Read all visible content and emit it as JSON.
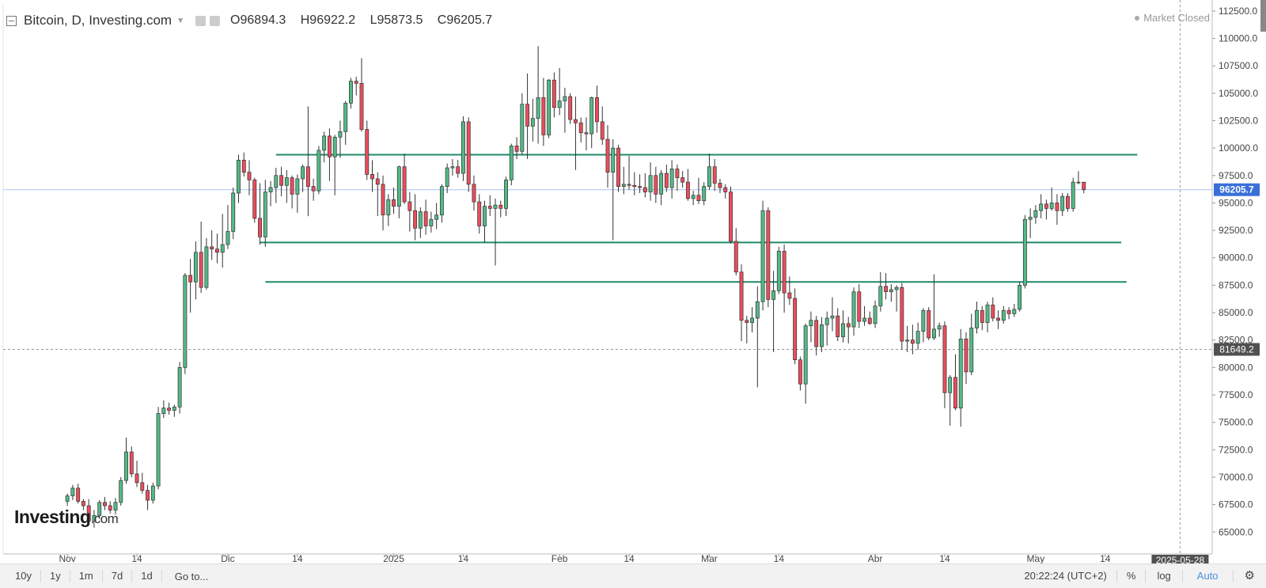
{
  "header": {
    "title": "Bitcoin, D, Investing.com",
    "ohlc": [
      {
        "key": "O",
        "value": "96894.3"
      },
      {
        "key": "H",
        "value": "96922.2"
      },
      {
        "key": "L",
        "value": "95873.5"
      },
      {
        "key": "C",
        "value": "96205.7"
      }
    ]
  },
  "market_status": "Market Closed",
  "logo": {
    "text": "Investing",
    "suffix": ".com"
  },
  "toolbar": {
    "timeframes": [
      "10y",
      "1y",
      "1m",
      "7d",
      "1d"
    ],
    "goto": "Go to...",
    "time": "20:22:24 (UTC+2)",
    "percent": "%",
    "log": "log",
    "auto": "Auto",
    "settings_icon": "gear-icon"
  },
  "colors": {
    "up": "#53b987",
    "down": "#eb4d5c",
    "support_line": "#1e8a6a",
    "last_price": "#3a6fd8",
    "crosshair": "#505050"
  },
  "chart_data": {
    "type": "candlestick",
    "title": "Bitcoin, D, Investing.com",
    "ylim": [
      63000,
      113500
    ],
    "y_ticks": [
      65000,
      67500,
      70000,
      72500,
      75000,
      77500,
      80000,
      82500,
      85000,
      87500,
      90000,
      92500,
      95000,
      97500,
      100000,
      102500,
      105000,
      107500,
      110000,
      112500
    ],
    "x_labels": [
      {
        "label": "Nov",
        "day": 0
      },
      {
        "label": "14",
        "day": 13
      },
      {
        "label": "Dic",
        "day": 30
      },
      {
        "label": "14",
        "day": 43
      },
      {
        "label": "2025",
        "day": 61
      },
      {
        "label": "14",
        "day": 74
      },
      {
        "label": "Feb",
        "day": 92
      },
      {
        "label": "14",
        "day": 105
      },
      {
        "label": "Mar",
        "day": 120
      },
      {
        "label": "14",
        "day": 133
      },
      {
        "label": "Abr",
        "day": 151
      },
      {
        "label": "14",
        "day": 164
      },
      {
        "label": "May",
        "day": 181
      },
      {
        "label": "14",
        "day": 194
      }
    ],
    "x_range_days": [
      -12,
      214
    ],
    "crosshair": {
      "day": 208,
      "date_label": "2025-05-28",
      "price": 81649.2,
      "price_label": "81649.2"
    },
    "last_price": {
      "value": 96205.7,
      "label": "96205.7"
    },
    "horizontal_lines": [
      {
        "value": 99400,
        "from_day": 39,
        "to_day": 200
      },
      {
        "value": 91400,
        "from_day": 36,
        "to_day": 197
      },
      {
        "value": 87800,
        "from_day": 37,
        "to_day": 198
      }
    ],
    "candles": [
      [
        67800,
        68500,
        67400,
        68300
      ],
      [
        68300,
        69300,
        67900,
        69000
      ],
      [
        69000,
        69400,
        67600,
        67800
      ],
      [
        67800,
        68000,
        67000,
        67400
      ],
      [
        67400,
        68000,
        65700,
        66000
      ],
      [
        66000,
        67000,
        65400,
        66500
      ],
      [
        66500,
        67900,
        66200,
        67700
      ],
      [
        67700,
        68200,
        67000,
        67400
      ],
      [
        67400,
        67800,
        66700,
        67000
      ],
      [
        67000,
        68100,
        66600,
        67700
      ],
      [
        67700,
        70000,
        67400,
        69700
      ],
      [
        69700,
        73600,
        69400,
        72300
      ],
      [
        72300,
        72800,
        70000,
        70300
      ],
      [
        70300,
        71500,
        69100,
        69500
      ],
      [
        69500,
        70400,
        68500,
        68800
      ],
      [
        68800,
        69300,
        67000,
        67900
      ],
      [
        67900,
        69500,
        67600,
        69200
      ],
      [
        69200,
        76400,
        68900,
        75800
      ],
      [
        75800,
        77000,
        75400,
        76300
      ],
      [
        76300,
        76800,
        75700,
        76100
      ],
      [
        76100,
        76600,
        75500,
        76400
      ],
      [
        76400,
        80500,
        75800,
        80000
      ],
      [
        80000,
        88600,
        79400,
        88400
      ],
      [
        88400,
        89900,
        85000,
        87800
      ],
      [
        87800,
        91500,
        86200,
        90500
      ],
      [
        90500,
        93300,
        86800,
        87300
      ],
      [
        87300,
        91800,
        87100,
        91000
      ],
      [
        91000,
        92500,
        89800,
        90800
      ],
      [
        90800,
        92200,
        89500,
        90500
      ],
      [
        90500,
        94000,
        89100,
        91200
      ],
      [
        91200,
        94800,
        90800,
        92400
      ],
      [
        92400,
        96400,
        91700,
        95900
      ],
      [
        95900,
        99400,
        95000,
        98900
      ],
      [
        98900,
        99600,
        97400,
        97800
      ],
      [
        97800,
        98900,
        95700,
        97100
      ],
      [
        97100,
        97300,
        93200,
        93600
      ],
      [
        93600,
        96800,
        91200,
        91900
      ],
      [
        91900,
        97100,
        91000,
        96000
      ],
      [
        96000,
        97000,
        94700,
        96400
      ],
      [
        96400,
        98200,
        95000,
        97500
      ],
      [
        97500,
        98300,
        95600,
        96600
      ],
      [
        96600,
        98000,
        95000,
        97300
      ],
      [
        97300,
        97500,
        94500,
        95800
      ],
      [
        95800,
        97600,
        94100,
        97200
      ],
      [
        97200,
        98500,
        96000,
        98300
      ],
      [
        98300,
        103800,
        93800,
        96500
      ],
      [
        96500,
        97200,
        95200,
        96100
      ],
      [
        96100,
        100200,
        95800,
        99800
      ],
      [
        99800,
        101500,
        98700,
        101100
      ],
      [
        101100,
        101800,
        97000,
        99200
      ],
      [
        99200,
        101200,
        95700,
        101000
      ],
      [
        101000,
        102500,
        99100,
        101500
      ],
      [
        101500,
        104300,
        100300,
        104100
      ],
      [
        104100,
        106400,
        103600,
        106100
      ],
      [
        106100,
        106500,
        104800,
        105900
      ],
      [
        105900,
        108200,
        101500,
        101700
      ],
      [
        101700,
        102500,
        97100,
        97600
      ],
      [
        97600,
        98900,
        96000,
        97200
      ],
      [
        97200,
        97800,
        93800,
        96700
      ],
      [
        96700,
        97500,
        92500,
        93900
      ],
      [
        93900,
        95800,
        92900,
        95300
      ],
      [
        95300,
        96400,
        94000,
        94700
      ],
      [
        94700,
        98400,
        93600,
        98300
      ],
      [
        98300,
        99500,
        94900,
        95100
      ],
      [
        95100,
        96000,
        92400,
        94300
      ],
      [
        94300,
        95800,
        91600,
        92700
      ],
      [
        92700,
        94600,
        91800,
        94200
      ],
      [
        94200,
        95300,
        92100,
        92900
      ],
      [
        92900,
        94200,
        92300,
        93500
      ],
      [
        93500,
        95000,
        92600,
        93900
      ],
      [
        93900,
        96700,
        93200,
        96500
      ],
      [
        96500,
        98600,
        95900,
        98200
      ],
      [
        98200,
        99000,
        97500,
        98300
      ],
      [
        98300,
        98900,
        97300,
        97700
      ],
      [
        97700,
        102900,
        97000,
        102400
      ],
      [
        102400,
        102800,
        96000,
        96700
      ],
      [
        96700,
        97500,
        94300,
        95100
      ],
      [
        95100,
        95800,
        92200,
        92900
      ],
      [
        92900,
        95200,
        91400,
        94700
      ],
      [
        94700,
        95700,
        93800,
        94500
      ],
      [
        94500,
        95400,
        89300,
        94800
      ],
      [
        94800,
        95200,
        93700,
        94500
      ],
      [
        94500,
        97400,
        93800,
        97100
      ],
      [
        97100,
        100400,
        96600,
        100200
      ],
      [
        100200,
        101000,
        99000,
        99700
      ],
      [
        99700,
        105000,
        99400,
        104000
      ],
      [
        104000,
        106800,
        99000,
        102000
      ],
      [
        102000,
        104500,
        100600,
        102700
      ],
      [
        102700,
        109300,
        100400,
        104600
      ],
      [
        104600,
        106400,
        100200,
        101200
      ],
      [
        101200,
        106300,
        100900,
        106200
      ],
      [
        106200,
        106900,
        102800,
        103700
      ],
      [
        103700,
        107300,
        103000,
        104300
      ],
      [
        104300,
        105500,
        101400,
        104700
      ],
      [
        104700,
        105000,
        102200,
        102600
      ],
      [
        102600,
        104700,
        98000,
        102300
      ],
      [
        102300,
        102800,
        100500,
        101400
      ],
      [
        101400,
        102800,
        99800,
        101300
      ],
      [
        101300,
        104700,
        100000,
        104600
      ],
      [
        104600,
        105700,
        101400,
        102400
      ],
      [
        102400,
        103800,
        100300,
        100800
      ],
      [
        100800,
        102100,
        96400,
        97800
      ],
      [
        97800,
        100800,
        91600,
        100000
      ],
      [
        100000,
        100300,
        96000,
        96500
      ],
      [
        96500,
        98300,
        95800,
        96700
      ],
      [
        96700,
        99300,
        96200,
        96600
      ],
      [
        96600,
        97800,
        95700,
        96500
      ],
      [
        96500,
        97600,
        95900,
        96400
      ],
      [
        96400,
        97700,
        95500,
        96000
      ],
      [
        96000,
        98700,
        95200,
        97500
      ],
      [
        97500,
        98300,
        95000,
        95800
      ],
      [
        95800,
        98000,
        94800,
        97700
      ],
      [
        97700,
        98500,
        96000,
        96400
      ],
      [
        96400,
        98900,
        95400,
        98100
      ],
      [
        98100,
        98500,
        96100,
        97300
      ],
      [
        97300,
        97900,
        96400,
        96900
      ],
      [
        96900,
        98100,
        95200,
        95400
      ],
      [
        95400,
        96100,
        94800,
        95700
      ],
      [
        95700,
        97300,
        94900,
        95200
      ],
      [
        95200,
        96900,
        94800,
        96500
      ],
      [
        96500,
        99500,
        96200,
        98300
      ],
      [
        98300,
        99000,
        96100,
        96800
      ],
      [
        96800,
        97200,
        95900,
        96400
      ],
      [
        96400,
        96700,
        95400,
        96000
      ],
      [
        96000,
        96500,
        91300,
        91500
      ],
      [
        91500,
        92700,
        88400,
        88700
      ],
      [
        88700,
        89400,
        82400,
        84300
      ],
      [
        84300,
        84700,
        82200,
        84100
      ],
      [
        84100,
        85500,
        83200,
        84500
      ],
      [
        84500,
        87400,
        78200,
        86000
      ],
      [
        86000,
        95200,
        85200,
        94300
      ],
      [
        94300,
        94600,
        85500,
        86200
      ],
      [
        86200,
        88800,
        81400,
        87000
      ],
      [
        87000,
        91000,
        86700,
        90600
      ],
      [
        90600,
        91200,
        85000,
        86800
      ],
      [
        86800,
        88300,
        85700,
        86300
      ],
      [
        86300,
        87200,
        80300,
        80700
      ],
      [
        80700,
        81000,
        77900,
        78500
      ],
      [
        78500,
        84000,
        76700,
        83800
      ],
      [
        83800,
        85100,
        82300,
        84300
      ],
      [
        84300,
        84700,
        81100,
        81900
      ],
      [
        81900,
        84600,
        81400,
        83900
      ],
      [
        83900,
        85100,
        82000,
        84500
      ],
      [
        84500,
        86400,
        83300,
        84700
      ],
      [
        84700,
        85400,
        82400,
        82800
      ],
      [
        82800,
        85200,
        82300,
        84000
      ],
      [
        84000,
        84600,
        82200,
        83700
      ],
      [
        83700,
        87300,
        82900,
        86900
      ],
      [
        86900,
        87600,
        83600,
        84200
      ],
      [
        84200,
        85600,
        83800,
        84500
      ],
      [
        84500,
        85100,
        83900,
        84000
      ],
      [
        84000,
        86100,
        83600,
        85600
      ],
      [
        85600,
        88700,
        85100,
        87400
      ],
      [
        87400,
        88600,
        86200,
        86900
      ],
      [
        86900,
        87600,
        86000,
        87100
      ],
      [
        87100,
        87500,
        85100,
        87300
      ],
      [
        87300,
        87700,
        81600,
        82400
      ],
      [
        82400,
        83800,
        81400,
        82500
      ],
      [
        82500,
        83900,
        81200,
        82200
      ],
      [
        82200,
        84100,
        81600,
        83300
      ],
      [
        83300,
        85400,
        82300,
        85200
      ],
      [
        85200,
        85500,
        82500,
        82700
      ],
      [
        82700,
        88500,
        82500,
        83500
      ],
      [
        83500,
        84100,
        82800,
        83800
      ],
      [
        83800,
        84200,
        76300,
        77700
      ],
      [
        77700,
        79300,
        74700,
        79100
      ],
      [
        79100,
        81200,
        76100,
        76300
      ],
      [
        76300,
        83500,
        74600,
        82600
      ],
      [
        82600,
        83200,
        78500,
        79600
      ],
      [
        79600,
        84900,
        79300,
        83600
      ],
      [
        83600,
        86000,
        83100,
        85200
      ],
      [
        85200,
        85600,
        83400,
        84100
      ],
      [
        84100,
        86000,
        83200,
        85700
      ],
      [
        85700,
        86400,
        84200,
        84500
      ],
      [
        84500,
        85200,
        83500,
        84300
      ],
      [
        84300,
        85600,
        84000,
        85200
      ],
      [
        85200,
        85500,
        84400,
        84900
      ],
      [
        84900,
        85800,
        84600,
        85300
      ],
      [
        85300,
        87800,
        85100,
        87500
      ],
      [
        87500,
        93900,
        87200,
        93500
      ],
      [
        93500,
        94500,
        91800,
        93700
      ],
      [
        93700,
        94800,
        93100,
        94300
      ],
      [
        94300,
        95800,
        93600,
        94900
      ],
      [
        94900,
        95300,
        93500,
        94500
      ],
      [
        94500,
        96400,
        94300,
        95000
      ],
      [
        95000,
        95800,
        93000,
        94300
      ],
      [
        94300,
        95900,
        93800,
        95600
      ],
      [
        95600,
        95900,
        94200,
        94500
      ],
      [
        94500,
        97300,
        94200,
        96900
      ],
      [
        96900,
        97900,
        96700,
        96900
      ],
      [
        96894.3,
        96922.2,
        95873.5,
        96205.7
      ]
    ]
  }
}
